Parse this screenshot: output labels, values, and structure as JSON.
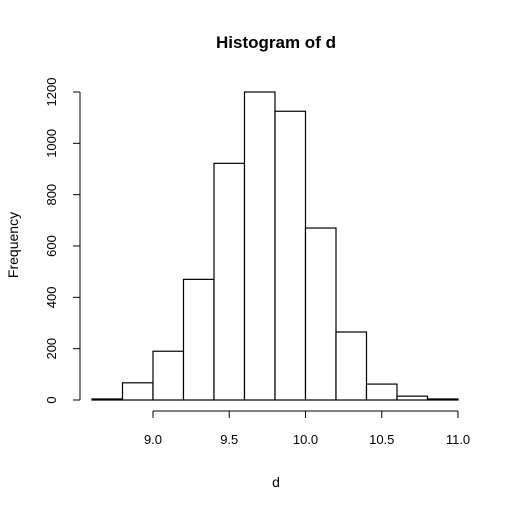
{
  "chart_data": {
    "type": "bar",
    "title": "Histogram of d",
    "xlabel": "d",
    "ylabel": "Frequency",
    "bins": [
      {
        "from": 8.6,
        "to": 8.8,
        "count": 4
      },
      {
        "from": 8.8,
        "to": 9.0,
        "count": 67
      },
      {
        "from": 9.0,
        "to": 9.2,
        "count": 190
      },
      {
        "from": 9.2,
        "to": 9.4,
        "count": 470
      },
      {
        "from": 9.4,
        "to": 9.6,
        "count": 922
      },
      {
        "from": 9.6,
        "to": 9.8,
        "count": 1200
      },
      {
        "from": 9.8,
        "to": 10.0,
        "count": 1125
      },
      {
        "from": 10.0,
        "to": 10.2,
        "count": 670
      },
      {
        "from": 10.2,
        "to": 10.4,
        "count": 265
      },
      {
        "from": 10.4,
        "to": 10.6,
        "count": 62
      },
      {
        "from": 10.6,
        "to": 10.8,
        "count": 15
      },
      {
        "from": 10.8,
        "to": 11.0,
        "count": 4
      }
    ],
    "x_ticks": [
      9.0,
      9.5,
      10.0,
      10.5,
      11.0
    ],
    "x_tick_labels": [
      "9.0",
      "9.5",
      "10.0",
      "10.5",
      "11.0"
    ],
    "y_ticks": [
      0,
      200,
      400,
      600,
      800,
      1000,
      1200
    ],
    "y_tick_labels": [
      "0",
      "200",
      "400",
      "600",
      "800",
      "1000",
      "1200"
    ],
    "xlim": [
      8.6,
      11.0
    ],
    "ylim": [
      0,
      1200
    ],
    "grid": false,
    "legend": "none"
  }
}
